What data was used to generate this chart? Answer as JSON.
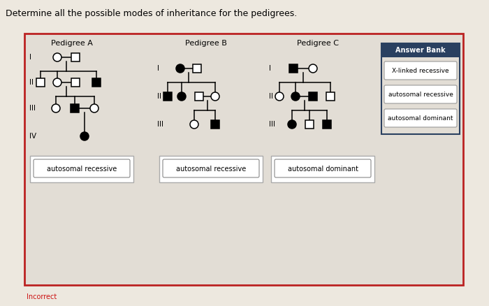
{
  "title": "Determine all the possible modes of inheritance for the pedigrees.",
  "bg_color": "#ede8df",
  "panel_bg": "#e2ddd5",
  "panel_border": "#bb2222",
  "ab_header_bg": "#2a4060",
  "ab_header_text": "Answer Bank",
  "ab_items": [
    "X-linked recessive",
    "autosomal recessive",
    "autosomal dominant"
  ],
  "ped_titles": [
    "Pedigree A",
    "Pedigree B",
    "Pedigree C"
  ],
  "answer_labels": [
    "autosomal recessive",
    "autosomal recessive",
    "autosomal dominant"
  ],
  "incorrect_text": "Incorrect",
  "incorrect_color": "#cc1111",
  "sym_r": 6,
  "lw": 1.1
}
